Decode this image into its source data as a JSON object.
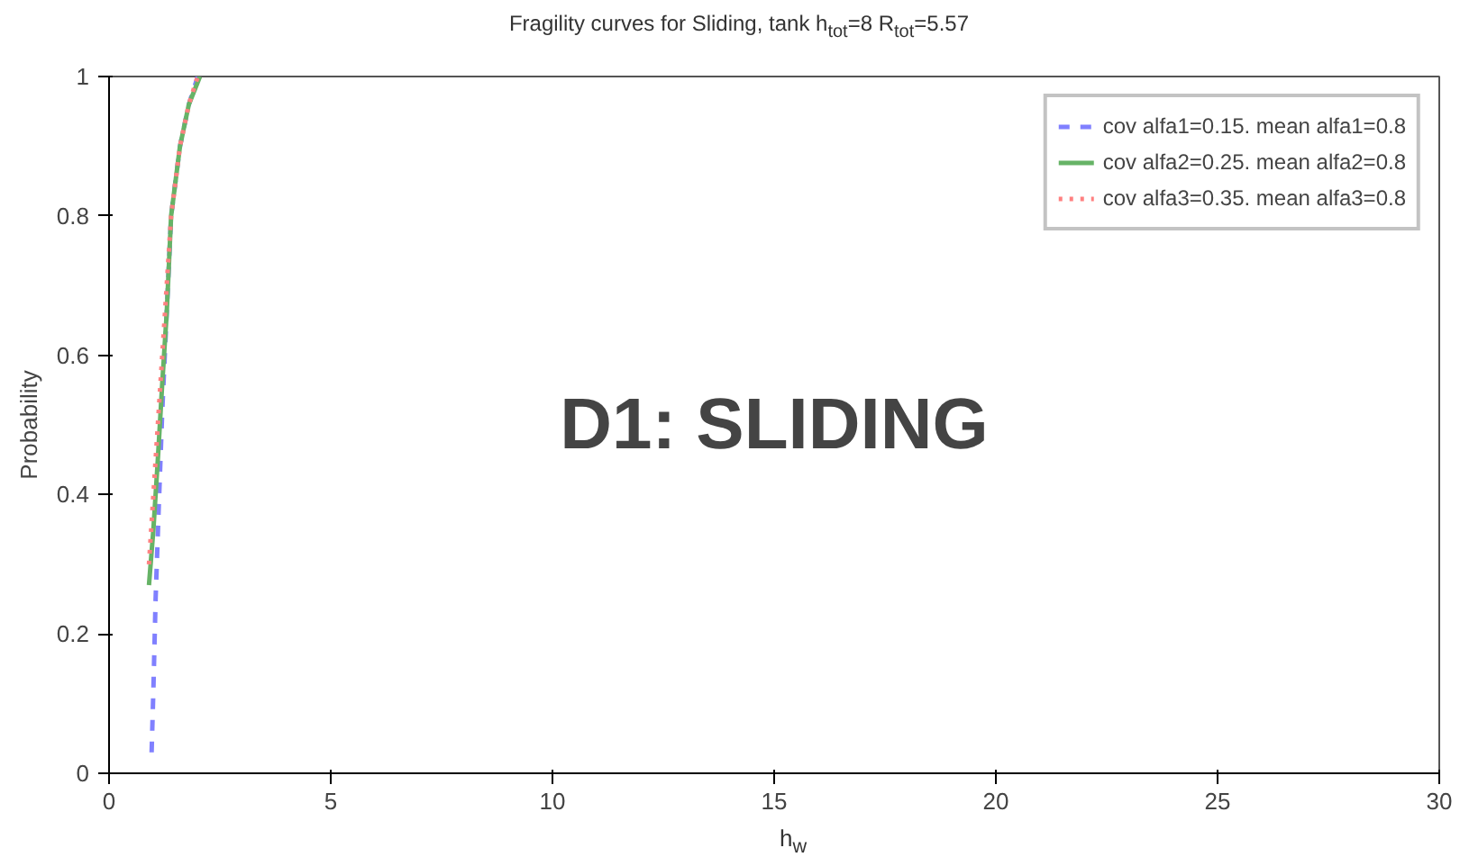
{
  "chart_data": {
    "type": "line",
    "title": "Fragility curves for Sliding, tank h$_{tot}$=8 R$_{tot}$=5.57",
    "xlabel": "h$_{w}$",
    "ylabel": "Probability",
    "xlim": [
      0,
      30
    ],
    "ylim": [
      0,
      1
    ],
    "xticks": [
      0,
      5,
      10,
      15,
      20,
      25,
      30
    ],
    "yticks": [
      0,
      0.2,
      0.4,
      0.6,
      0.8,
      1
    ],
    "grid": false,
    "legend": "top right",
    "annotations": [
      "D1: SLIDING"
    ],
    "series": [
      {
        "name": "cov alfa1=0.15. mean alfa1=0.8",
        "color": "#8080ff",
        "line_style": "dashed",
        "x": [
          0.96,
          1.0,
          1.05,
          1.12,
          1.2,
          1.3,
          1.4,
          1.6,
          1.8,
          2.0
        ],
        "values": [
          0.03,
          0.12,
          0.25,
          0.38,
          0.52,
          0.66,
          0.8,
          0.9,
          0.96,
          1.0
        ]
      },
      {
        "name": "cov alfa2=0.25. mean alfa2=0.8",
        "color": "#66b366",
        "line_style": "solid",
        "x": [
          0.9,
          1.0,
          1.1,
          1.2,
          1.3,
          1.4,
          1.6,
          1.8,
          2.05
        ],
        "values": [
          0.27,
          0.35,
          0.45,
          0.56,
          0.66,
          0.8,
          0.9,
          0.96,
          1.0
        ]
      },
      {
        "name": "cov alfa3=0.35. mean alfa3=0.8",
        "color": "#ff8080",
        "line_style": "dotted",
        "x": [
          0.9,
          1.0,
          1.1,
          1.2,
          1.3,
          1.4,
          1.6,
          1.8,
          2.0
        ],
        "values": [
          0.3,
          0.4,
          0.5,
          0.6,
          0.7,
          0.8,
          0.9,
          0.96,
          1.0
        ]
      }
    ]
  }
}
